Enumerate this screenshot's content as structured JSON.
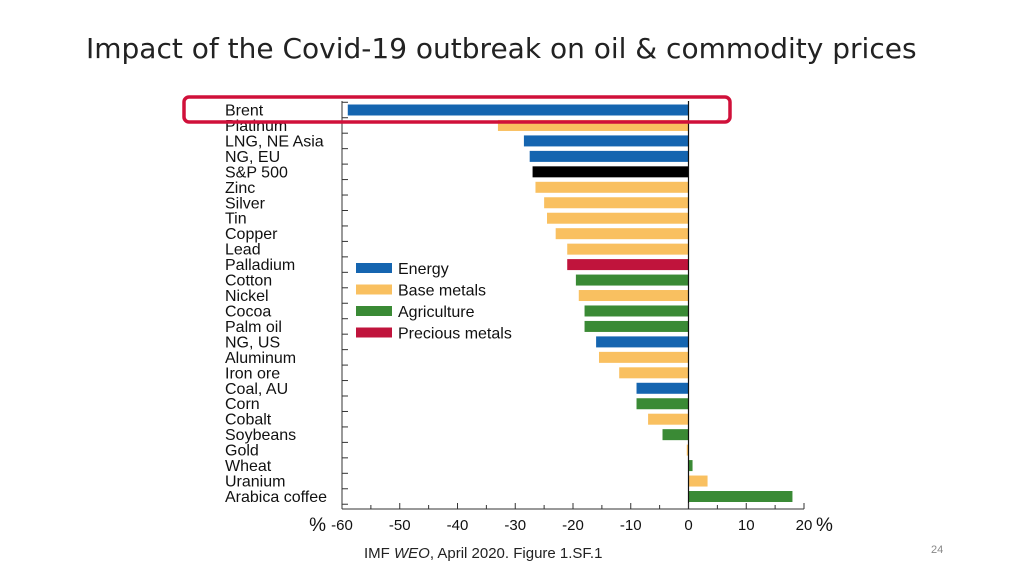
{
  "slide": {
    "title": "Impact of the Covid-19 outbreak on oil & commodity prices",
    "page_number": "24"
  },
  "source": {
    "prefix": "IMF ",
    "italic": "WEO",
    "suffix": ", April 2020. Figure 1.SF.1"
  },
  "colors": {
    "Energy": "#1565b0",
    "Base metals": "#f9c060",
    "Agriculture": "#3a8a35",
    "Precious metals": "#c0143c",
    "highlight": "#d0103a",
    "sp500": "#000000"
  },
  "chart_data": {
    "type": "bar",
    "orientation": "horizontal",
    "xlim": [
      -60,
      20
    ],
    "x_ticks": [
      -60,
      -50,
      -40,
      -30,
      -20,
      -10,
      0,
      10,
      20
    ],
    "x_unit": "%",
    "legend": [
      "Energy",
      "Base metals",
      "Agriculture",
      "Precious metals"
    ],
    "legend_position": "center-left",
    "highlighted": "Brent",
    "bars": [
      {
        "label": "Brent",
        "value": -59,
        "group": "Energy"
      },
      {
        "label": "Platinum",
        "value": -33,
        "group": "Base metals"
      },
      {
        "label": "LNG, NE Asia",
        "value": -28.5,
        "group": "Energy"
      },
      {
        "label": "NG, EU",
        "value": -27.5,
        "group": "Energy"
      },
      {
        "label": "S&P 500",
        "value": -27,
        "group": "sp500"
      },
      {
        "label": "Zinc",
        "value": -26.5,
        "group": "Base metals"
      },
      {
        "label": "Silver",
        "value": -25,
        "group": "Base metals"
      },
      {
        "label": "Tin",
        "value": -24.5,
        "group": "Base metals"
      },
      {
        "label": "Copper",
        "value": -23,
        "group": "Base metals"
      },
      {
        "label": "Lead",
        "value": -21,
        "group": "Base metals"
      },
      {
        "label": "Palladium",
        "value": -21,
        "group": "Precious metals"
      },
      {
        "label": "Cotton",
        "value": -19.5,
        "group": "Agriculture"
      },
      {
        "label": "Nickel",
        "value": -19,
        "group": "Base metals"
      },
      {
        "label": "Cocoa",
        "value": -18,
        "group": "Agriculture"
      },
      {
        "label": "Palm oil",
        "value": -18,
        "group": "Agriculture"
      },
      {
        "label": "NG, US",
        "value": -16,
        "group": "Energy"
      },
      {
        "label": "Aluminum",
        "value": -15.5,
        "group": "Base metals"
      },
      {
        "label": "Iron ore",
        "value": -12,
        "group": "Base metals"
      },
      {
        "label": "Coal, AU",
        "value": -9,
        "group": "Energy"
      },
      {
        "label": "Corn",
        "value": -9,
        "group": "Agriculture"
      },
      {
        "label": "Cobalt",
        "value": -7,
        "group": "Base metals"
      },
      {
        "label": "Soybeans",
        "value": -4.5,
        "group": "Agriculture"
      },
      {
        "label": "Gold",
        "value": -0.3,
        "group": "Base metals"
      },
      {
        "label": "Wheat",
        "value": 0.7,
        "group": "Agriculture"
      },
      {
        "label": "Uranium",
        "value": 3.3,
        "group": "Base metals"
      },
      {
        "label": "Arabica coffee",
        "value": 18,
        "group": "Agriculture"
      }
    ]
  }
}
